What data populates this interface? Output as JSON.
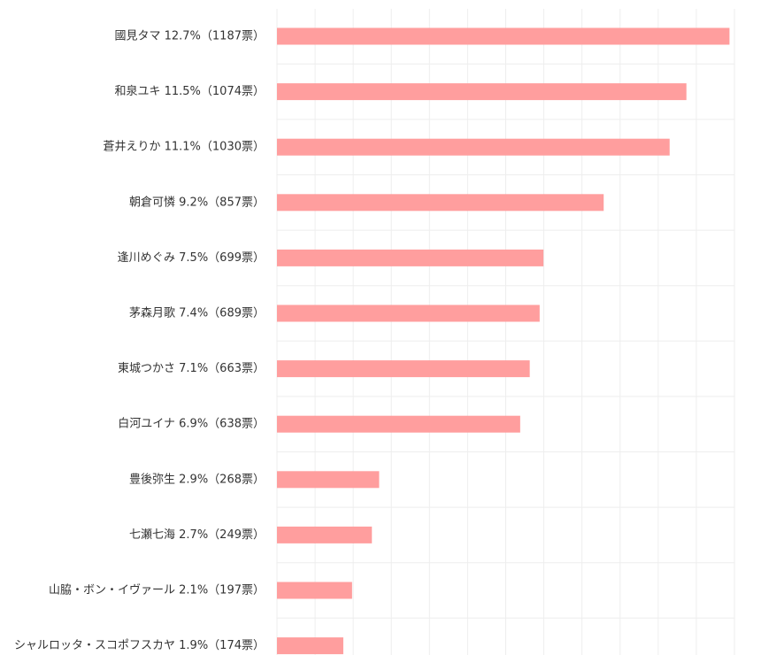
{
  "chart_data": {
    "type": "bar",
    "orientation": "horizontal",
    "categories": [
      "國見タマ 12.7%（1187票）",
      "和泉ユキ 11.5%（1074票）",
      "蒼井えりか 11.1%（1030票）",
      "朝倉可憐 9.2%（857票）",
      "逢川めぐみ 7.5%（699票）",
      "茅森月歌 7.4%（689票）",
      "東城つかさ 7.1%（663票）",
      "白河ユイナ 6.9%（638票）",
      "豊後弥生 2.9%（268票）",
      "七瀬七海 2.7%（249票）",
      "山脇・ボン・イヴァール 2.1%（197票）",
      "シャルロッタ・スコポフスカヤ 1.9%（174票）"
    ],
    "values": [
      1187,
      1074,
      1030,
      857,
      699,
      689,
      663,
      638,
      268,
      249,
      197,
      174
    ],
    "xlim": [
      0,
      1200
    ],
    "grid": true,
    "bar_color": "#ff9e9e",
    "grid_color": "#eeeeee"
  }
}
